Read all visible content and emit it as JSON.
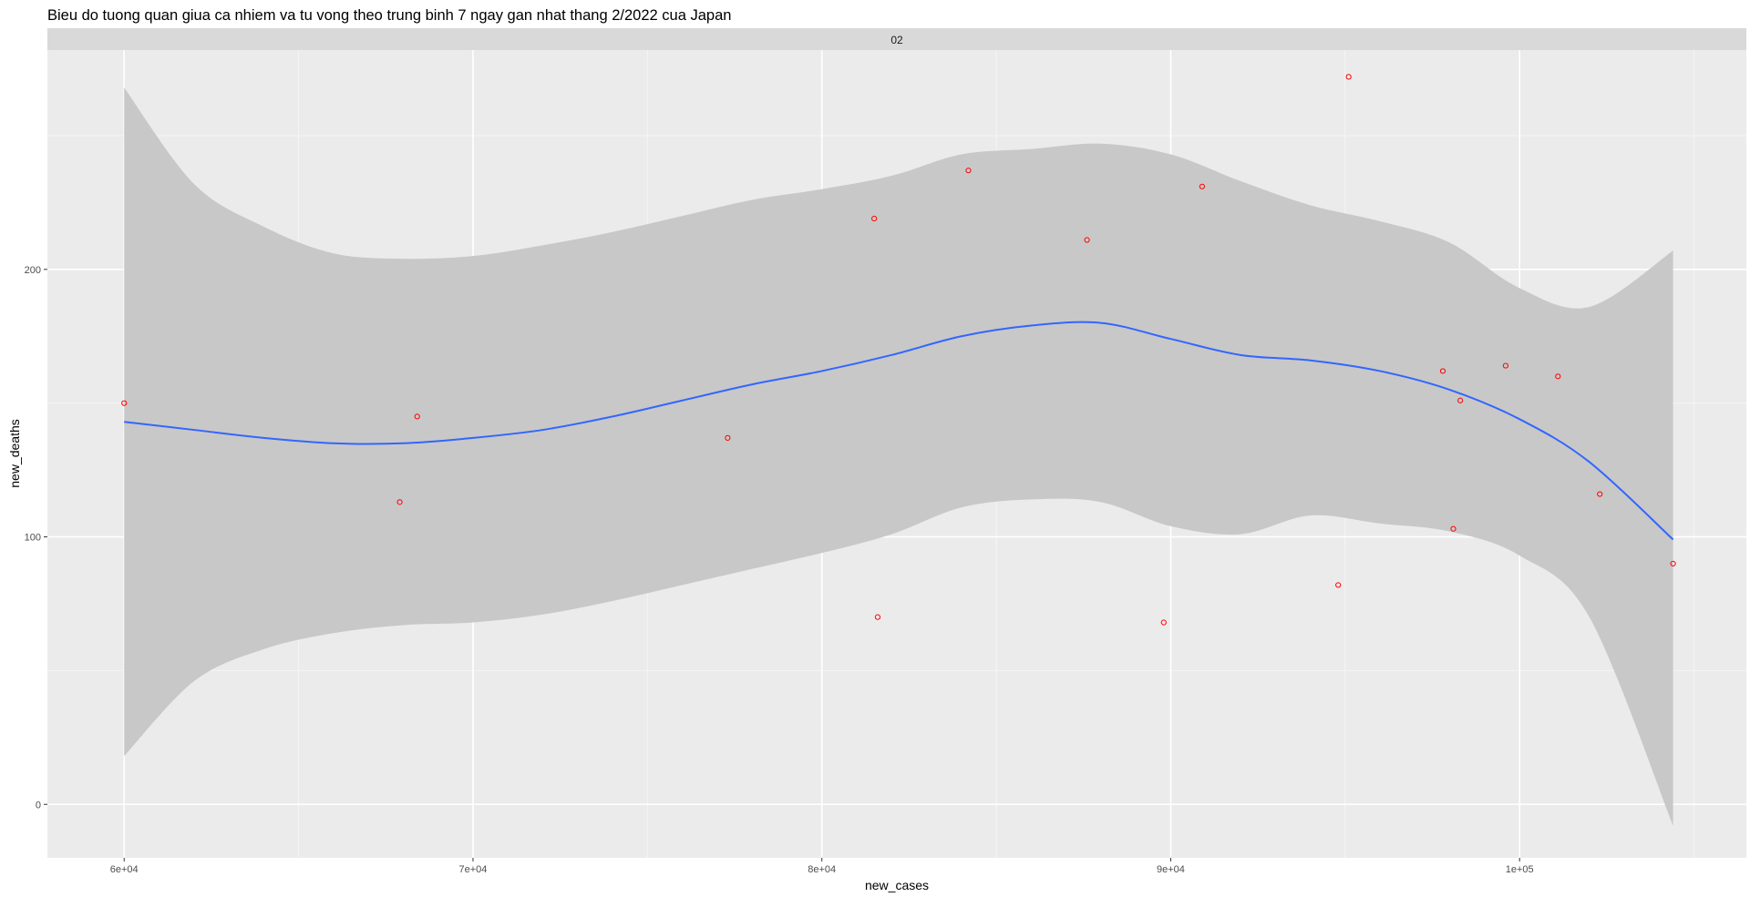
{
  "colors": {
    "panel_bg": "#ebebeb",
    "grid_major": "#ffffff",
    "grid_minor": "#f5f5f5",
    "strip_bg": "#d9d9d9",
    "ribbon": "#c8c8c8",
    "smooth_line": "#3366ff",
    "points": "#ff0000",
    "text_dark": "#000000",
    "tick_label": "#4d4d4d"
  },
  "chart_data": {
    "type": "scatter",
    "title": "Bieu do tuong quan giua ca nhiem va tu vong theo trung binh 7 ngay gan nhat thang 2/2022 cua Japan",
    "facet_label": "02",
    "xlabel": "new_cases",
    "ylabel": "new_deaths",
    "xlim": [
      57800,
      106500
    ],
    "ylim": [
      -20,
      282
    ],
    "x_ticks": [
      60000,
      70000,
      80000,
      90000,
      100000
    ],
    "x_tick_labels": [
      "6e+04",
      "7e+04",
      "8e+04",
      "9e+04",
      "1e+05"
    ],
    "y_ticks": [
      0,
      100,
      200
    ],
    "y_tick_labels": [
      "0",
      "100",
      "200"
    ],
    "grid": true,
    "points": [
      {
        "x": 60000,
        "y": 150
      },
      {
        "x": 67900,
        "y": 113
      },
      {
        "x": 68400,
        "y": 145
      },
      {
        "x": 77300,
        "y": 137
      },
      {
        "x": 81500,
        "y": 219
      },
      {
        "x": 81600,
        "y": 70
      },
      {
        "x": 84200,
        "y": 237
      },
      {
        "x": 87600,
        "y": 211
      },
      {
        "x": 89800,
        "y": 68
      },
      {
        "x": 90900,
        "y": 231
      },
      {
        "x": 94800,
        "y": 82
      },
      {
        "x": 95100,
        "y": 272
      },
      {
        "x": 97800,
        "y": 162
      },
      {
        "x": 98100,
        "y": 103
      },
      {
        "x": 98300,
        "y": 151
      },
      {
        "x": 99600,
        "y": 164
      },
      {
        "x": 101100,
        "y": 160
      },
      {
        "x": 102300,
        "y": 116
      },
      {
        "x": 104400,
        "y": 90
      }
    ],
    "smooth": {
      "method": "loess",
      "x": [
        60000,
        62000,
        64000,
        66000,
        68000,
        70000,
        72000,
        74000,
        76000,
        78000,
        80000,
        82000,
        84000,
        86000,
        88000,
        90000,
        92000,
        94000,
        96000,
        98000,
        100000,
        102000,
        104400
      ],
      "y": [
        143,
        140,
        137,
        135,
        135,
        137,
        140,
        145,
        151,
        157,
        162,
        168,
        175,
        179,
        180,
        174,
        168,
        166,
        162,
        155,
        144,
        128,
        99
      ],
      "ymin": [
        18,
        46,
        58,
        64,
        67,
        68,
        71,
        76,
        82,
        88,
        94,
        101,
        111,
        114,
        113,
        104,
        101,
        108,
        105,
        102,
        93,
        70,
        -8
      ],
      "ymax": [
        268,
        232,
        216,
        206,
        204,
        205,
        209,
        214,
        220,
        226,
        230,
        235,
        243,
        245,
        247,
        243,
        233,
        224,
        218,
        210,
        193,
        186,
        207
      ]
    }
  }
}
